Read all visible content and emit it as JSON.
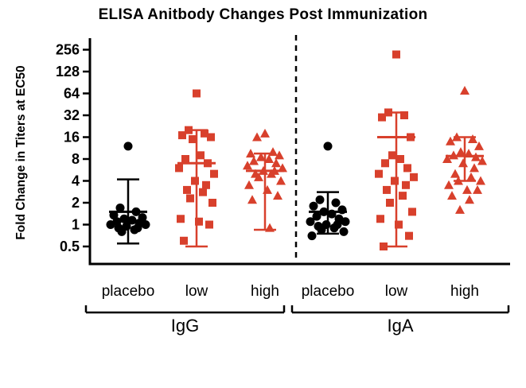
{
  "chart_data": {
    "type": "scatter",
    "title": "ELISA Anitbody Changes Post Immunization",
    "ylabel": "Fold Change in Titers at EC50",
    "xlabel": "",
    "yscale": "log2",
    "ylim": [
      0.5,
      256
    ],
    "yticks": [
      0.5,
      1,
      2,
      4,
      8,
      16,
      32,
      64,
      128,
      256
    ],
    "grid": false,
    "legend": "none",
    "accent_color": "#d8402c",
    "placebo_color": "#000000",
    "panels": [
      {
        "label": "IgG",
        "groups": [
          {
            "label": "placebo",
            "marker": "circle",
            "color": "#000000",
            "mean": 1.5,
            "whisker_upper": 4.2,
            "whisker_lower": 0.55,
            "values": [
              12,
              1.7,
              1.5,
              1.35,
              1.25,
              1.2,
              1.15,
              1.1,
              1.05,
              1.0,
              1.0,
              0.95,
              0.9,
              0.9,
              0.85,
              0.8
            ]
          },
          {
            "label": "low",
            "marker": "square",
            "color": "#d8402c",
            "mean": 7,
            "whisker_upper": 20,
            "whisker_lower": 0.5,
            "values": [
              64,
              20,
              18,
              17,
              16,
              15,
              9,
              8,
              7,
              6,
              5,
              4,
              3.5,
              3,
              2.8,
              2.3,
              2,
              1.2,
              1.1,
              1.0,
              0.6
            ]
          },
          {
            "label": "high",
            "marker": "triangle",
            "color": "#d8402c",
            "mean": 5.5,
            "whisker_upper": 9.5,
            "whisker_lower": 0.85,
            "values": [
              18,
              16,
              10,
              9.5,
              9,
              8.5,
              8,
              7.5,
              7,
              6.5,
              6,
              5.5,
              5.5,
              5,
              5,
              4.5,
              4,
              3.5,
              3,
              2.5,
              2.2,
              0.9
            ]
          }
        ]
      },
      {
        "label": "IgA",
        "groups": [
          {
            "label": "placebo",
            "marker": "circle",
            "color": "#000000",
            "mean": 1.5,
            "whisker_upper": 2.8,
            "whisker_lower": 0.75,
            "values": [
              12,
              2.2,
              2.0,
              1.8,
              1.6,
              1.5,
              1.4,
              1.3,
              1.2,
              1.1,
              1.1,
              1.0,
              1.0,
              0.95,
              0.9,
              0.85,
              0.8,
              0.7
            ]
          },
          {
            "label": "low",
            "marker": "square",
            "color": "#d8402c",
            "mean": 16,
            "whisker_upper": 35,
            "whisker_lower": 0.5,
            "values": [
              220,
              35,
              32,
              30,
              16,
              9,
              8,
              7,
              6,
              5,
              4.5,
              4,
              3.5,
              3,
              2.5,
              2,
              1.5,
              1.2,
              1.0,
              0.7,
              0.5
            ]
          },
          {
            "label": "high",
            "marker": "triangle",
            "color": "#d8402c",
            "mean": 8.8,
            "whisker_upper": 16,
            "whisker_lower": 4,
            "values": [
              70,
              16,
              15,
              14,
              12,
              10,
              9.5,
              9,
              8.5,
              8,
              7.5,
              7,
              6,
              5,
              4.5,
              4,
              4,
              3.5,
              3,
              3,
              2.5,
              2.2,
              1.6
            ]
          }
        ]
      }
    ]
  }
}
